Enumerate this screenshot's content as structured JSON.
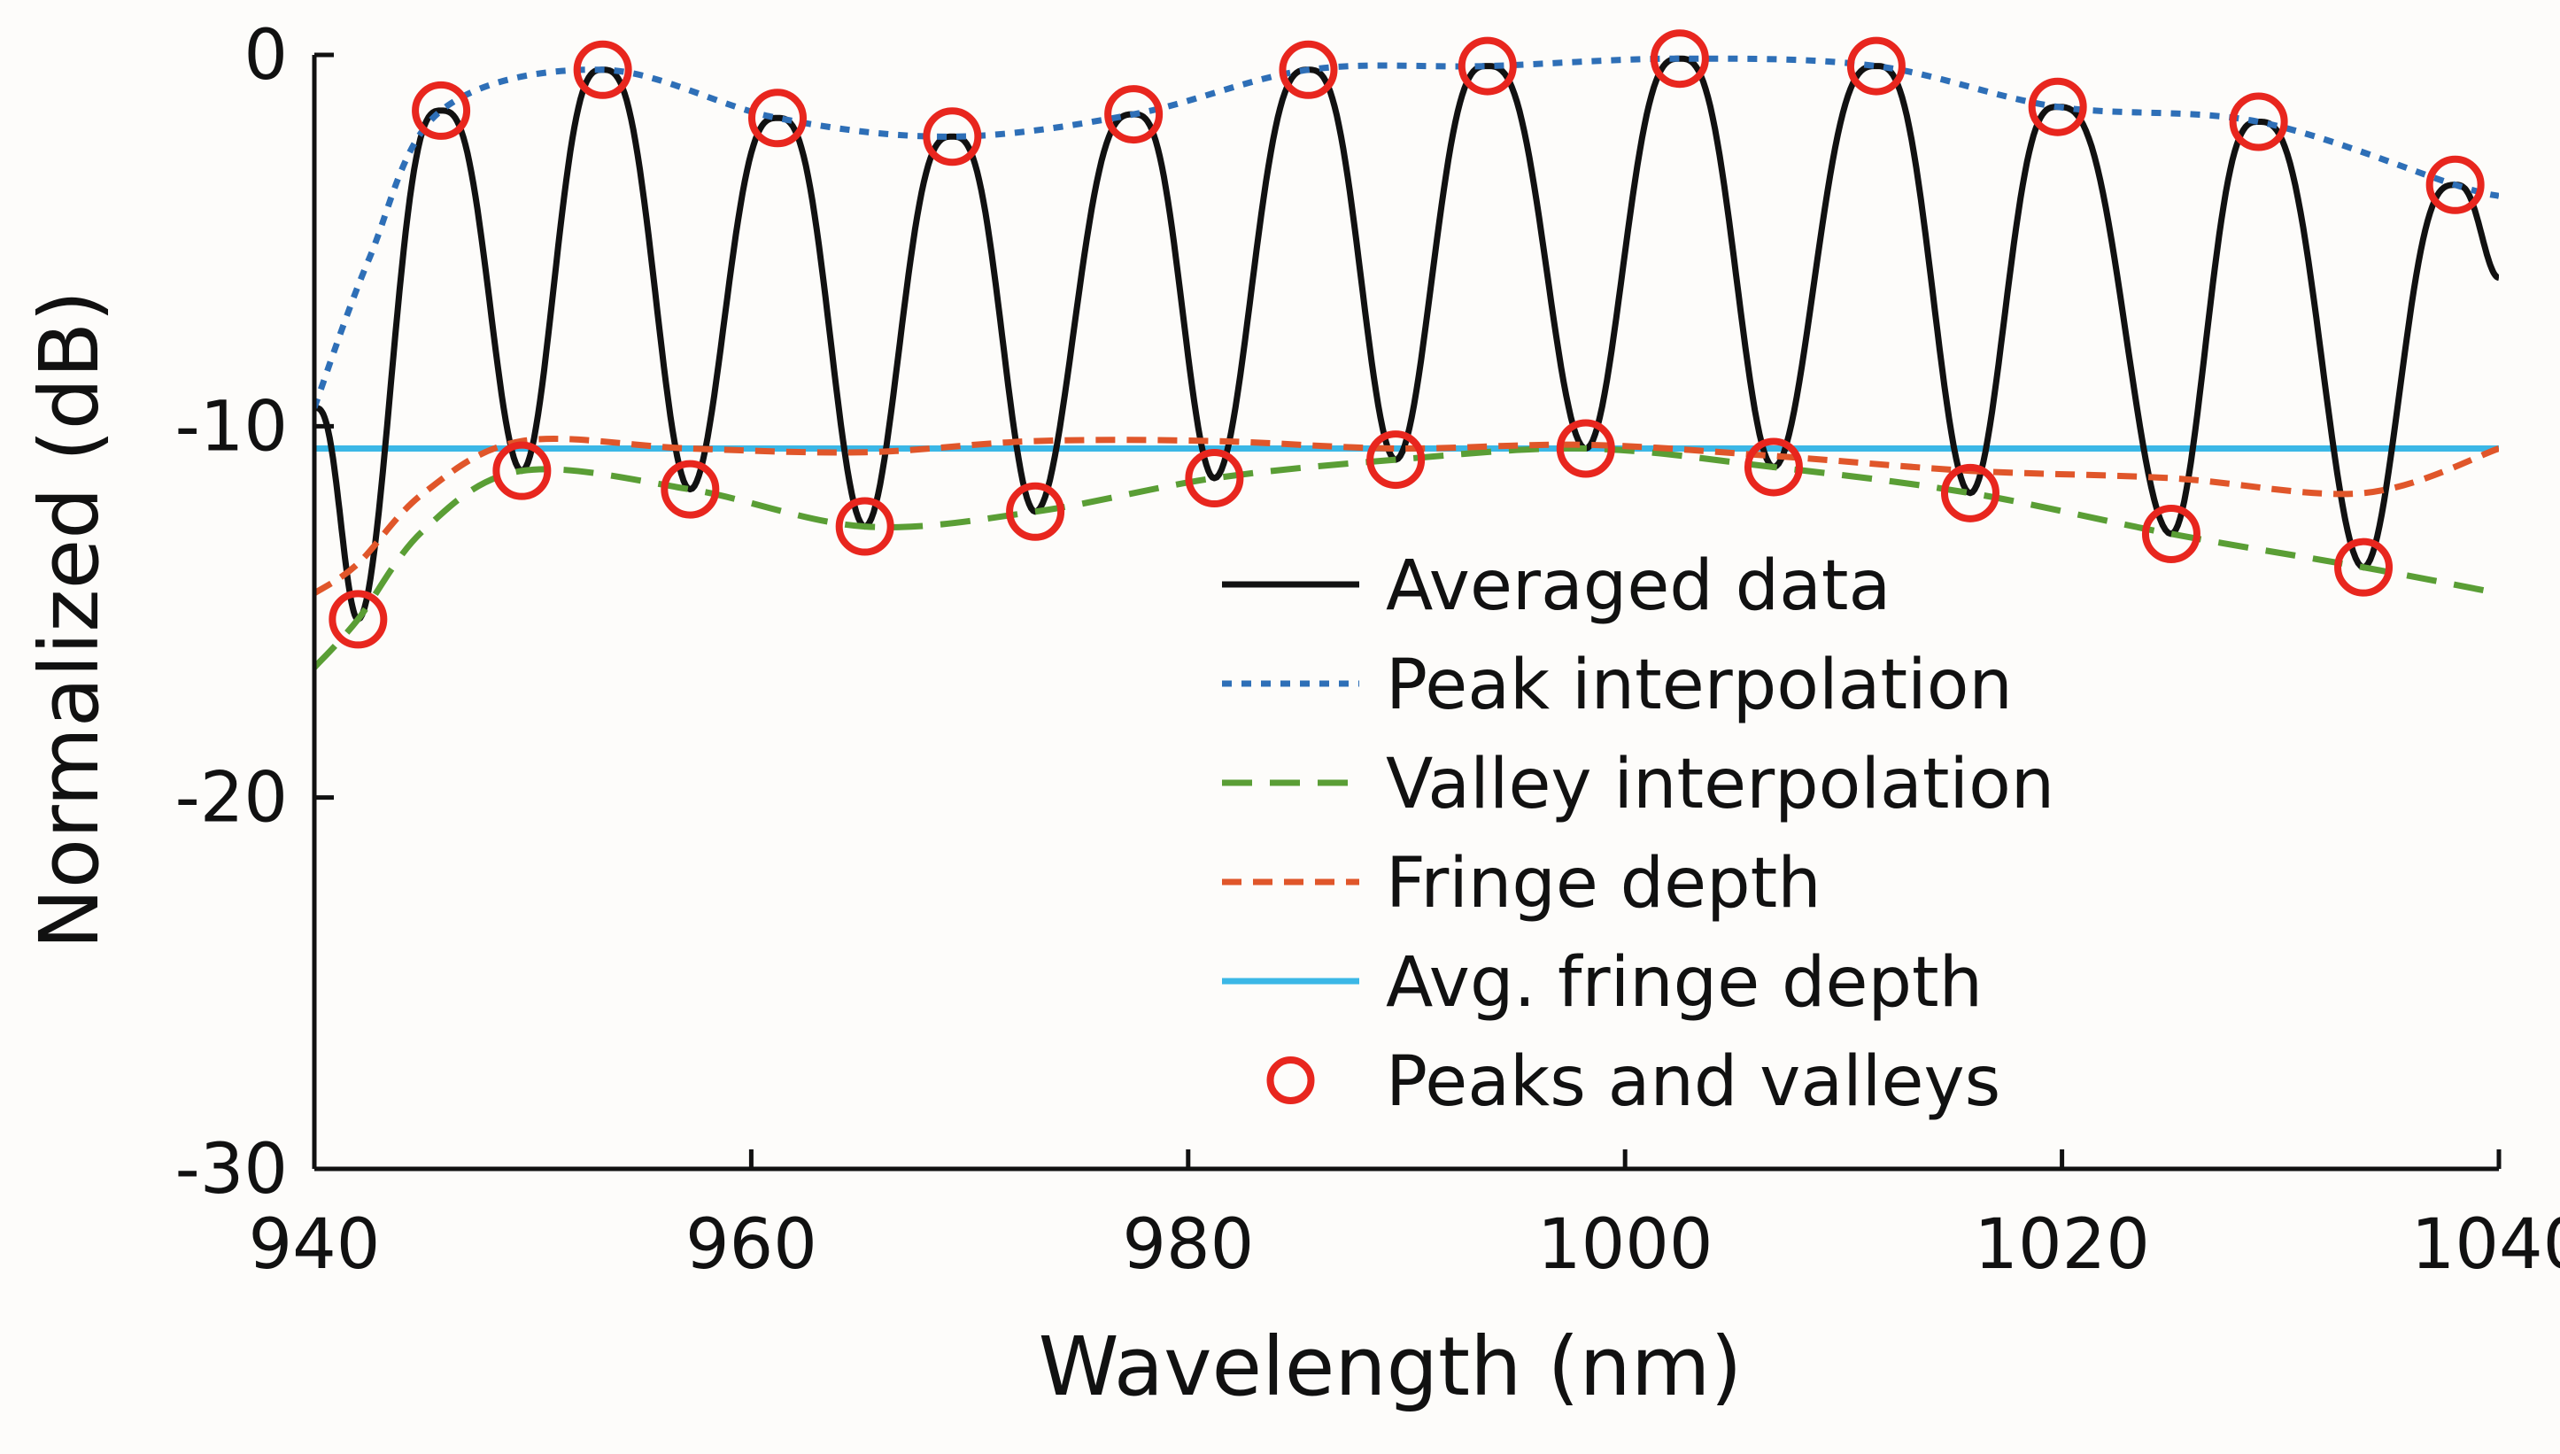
{
  "chart_data": {
    "type": "line",
    "title": "",
    "xlabel": "Wavelength (nm)",
    "ylabel": "Normalized (dB)",
    "xlim": [
      940,
      1040
    ],
    "ylim": [
      -30,
      0
    ],
    "xticks": [
      940,
      960,
      980,
      1000,
      1020,
      1040
    ],
    "xtick_labels": [
      "940",
      "960",
      "980",
      "1000",
      "1020",
      "1040"
    ],
    "yticks": [
      0,
      -10,
      -20,
      -30
    ],
    "ytick_labels": [
      "0",
      "-10",
      "-20",
      "-30"
    ],
    "grid": false,
    "legend_position": "lower-right",
    "colors": {
      "averaged": "#111111",
      "peak": "#2e6fb7",
      "valley": "#5a9e35",
      "fringe": "#e0562a",
      "avg_fringe": "#3bb7e6",
      "markers": "#e8261e"
    },
    "peaks": {
      "x": [
        945.8,
        953.2,
        961.2,
        969.2,
        977.5,
        985.5,
        993.7,
        1002.5,
        1011.5,
        1019.8,
        1029.0,
        1038.0
      ],
      "y": [
        -1.5,
        -0.4,
        -1.7,
        -2.2,
        -1.6,
        -0.4,
        -0.3,
        -0.1,
        -0.3,
        -1.4,
        -1.8,
        -3.5
      ]
    },
    "valleys": {
      "x": [
        942.0,
        949.5,
        957.2,
        965.2,
        973.0,
        981.2,
        989.5,
        998.2,
        1006.8,
        1015.8,
        1025.0,
        1033.8
      ],
      "y": [
        -15.2,
        -11.2,
        -11.7,
        -12.7,
        -12.3,
        -11.4,
        -10.9,
        -10.6,
        -11.1,
        -11.8,
        -12.9,
        -13.8
      ]
    },
    "series": [
      {
        "name": "Averaged data",
        "style": "solid",
        "note": "oscillating fringe pattern connecting the peaks and valleys listed above"
      },
      {
        "name": "Peak interpolation",
        "style": "dotted",
        "x": [
          940.0,
          942.5,
          945.8,
          953.2,
          961.2,
          969.2,
          977.5,
          985.5,
          993.7,
          1002.5,
          1011.5,
          1019.8,
          1029.0,
          1038.0,
          1040.0
        ],
        "values": [
          -9.5,
          -5.5,
          -1.5,
          -0.4,
          -1.7,
          -2.2,
          -1.6,
          -0.4,
          -0.3,
          -0.1,
          -0.3,
          -1.4,
          -1.8,
          -3.5,
          -3.8
        ]
      },
      {
        "name": "Valley interpolation",
        "style": "dashed",
        "x": [
          940.0,
          942.0,
          945.0,
          949.5,
          957.2,
          965.2,
          973.0,
          981.2,
          989.5,
          998.2,
          1006.8,
          1015.8,
          1025.0,
          1033.8,
          1040.0
        ],
        "values": [
          -16.5,
          -15.2,
          -12.8,
          -11.2,
          -11.7,
          -12.7,
          -12.3,
          -11.4,
          -10.9,
          -10.6,
          -11.1,
          -11.8,
          -12.9,
          -13.8,
          -14.5
        ]
      },
      {
        "name": "Fringe depth",
        "style": "dash",
        "x": [
          940.0,
          942.0,
          945.0,
          949.5,
          957.2,
          965.2,
          973.0,
          981.2,
          989.5,
          998.2,
          1006.8,
          1015.8,
          1025.0,
          1033.8,
          1040.0
        ],
        "values": [
          -14.5,
          -13.7,
          -11.8,
          -10.4,
          -10.6,
          -10.7,
          -10.4,
          -10.4,
          -10.6,
          -10.5,
          -10.8,
          -11.2,
          -11.4,
          -11.8,
          -10.6
        ]
      },
      {
        "name": "Avg. fringe depth",
        "style": "solid",
        "x": [
          940.0,
          1040.0
        ],
        "values": [
          -10.6,
          -10.6
        ]
      },
      {
        "name": "Peaks and valleys",
        "style": "marker-circle",
        "note": "circle markers at every peak and valley listed above"
      }
    ],
    "legend": [
      "Averaged data",
      "Peak interpolation",
      "Valley interpolation",
      "Fringe depth",
      "Avg. fringe depth",
      "Peaks and valleys"
    ]
  }
}
